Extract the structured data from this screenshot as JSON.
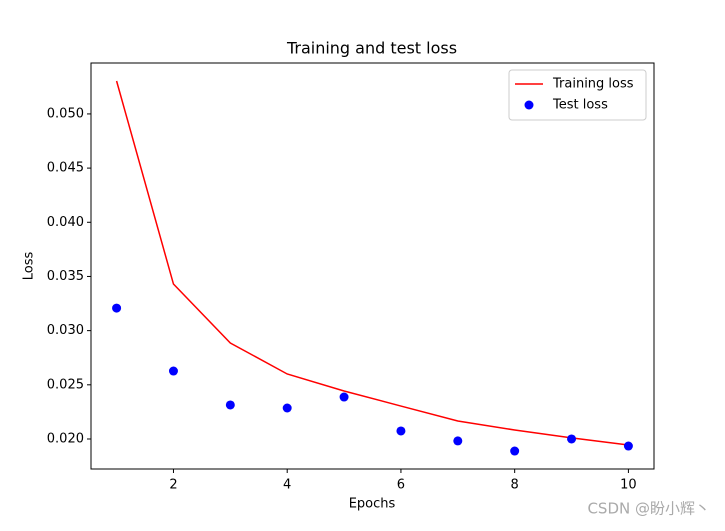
{
  "chart_data": {
    "type": "line",
    "title": "Training and test loss",
    "x_label": "Epochs",
    "y_label": "Loss",
    "x": [
      1,
      2,
      3,
      4,
      5,
      6,
      7,
      8,
      9,
      10
    ],
    "series": [
      {
        "name": "Training loss",
        "color": "#ff0000",
        "style": "line",
        "values": [
          0.05304,
          0.0343,
          0.02886,
          0.026,
          0.02443,
          0.02304,
          0.02166,
          0.02083,
          0.0201,
          0.01945
        ]
      },
      {
        "name": "Test loss",
        "color": "#0000ff",
        "style": "dots",
        "values": [
          0.03208,
          0.02627,
          0.02314,
          0.02286,
          0.02387,
          0.02074,
          0.01982,
          0.01889,
          0.02,
          0.01935
        ]
      }
    ],
    "xlim": [
      0.55,
      10.45
    ],
    "ylim": [
      0.01723,
      0.0547
    ],
    "xticks": [
      2,
      4,
      6,
      8,
      10
    ],
    "yticks": [
      {
        "value": 0.02,
        "label": "0.020"
      },
      {
        "value": 0.025,
        "label": "0.025"
      },
      {
        "value": 0.03,
        "label": "0.030"
      },
      {
        "value": 0.035,
        "label": "0.035"
      },
      {
        "value": 0.04,
        "label": "0.040"
      },
      {
        "value": 0.045,
        "label": "0.045"
      },
      {
        "value": 0.05,
        "label": "0.050"
      }
    ],
    "legend": "upper right",
    "grid": false
  },
  "watermark": "CSDN @盼小辉丶"
}
